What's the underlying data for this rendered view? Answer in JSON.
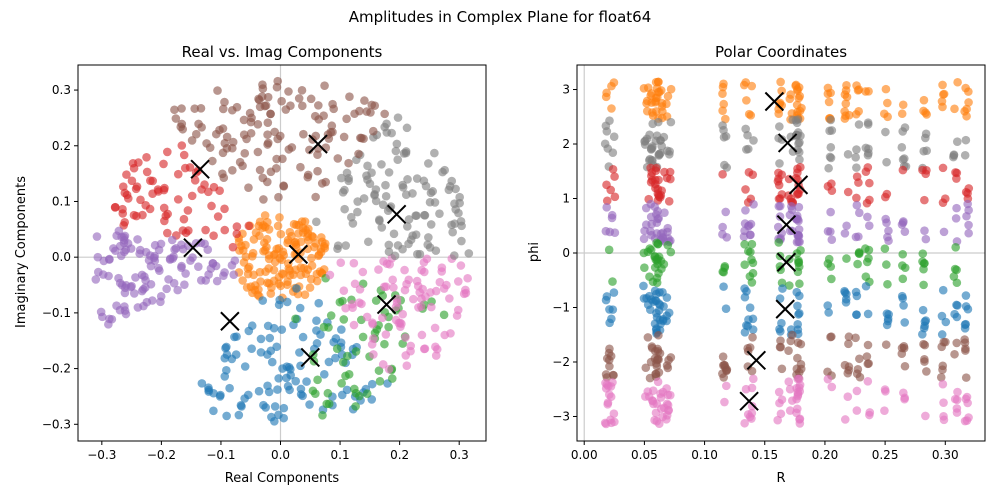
{
  "figure_title": "Amplitudes in Complex Plane for float64",
  "chart_data": [
    {
      "type": "scatter",
      "title": "Real vs. Imag Components",
      "xlabel": "Real Components",
      "ylabel": "Imaginary Components",
      "xlim": [
        -0.34,
        0.345
      ],
      "ylim": [
        -0.33,
        0.345
      ],
      "xticks": [
        -0.3,
        -0.2,
        -0.1,
        0.0,
        0.1,
        0.2,
        0.3
      ],
      "xtick_labels": [
        "−0.3",
        "−0.2",
        "−0.1",
        "0.0",
        "0.1",
        "0.2",
        "0.3"
      ],
      "yticks": [
        -0.3,
        -0.2,
        -0.1,
        0.0,
        0.1,
        0.2,
        0.3
      ],
      "ytick_labels": [
        "−0.3",
        "−0.2",
        "−0.1",
        "0.0",
        "0.1",
        "0.2",
        "0.3"
      ],
      "reference_lines": {
        "x": 0,
        "y": 0
      },
      "clusters": [
        {
          "color": "#ff7f0e",
          "phi_range": [
            -3.14,
            3.14
          ],
          "r_range": [
            0.0,
            0.08
          ],
          "count": 140
        },
        {
          "color": "#1f77b4",
          "phi_range": [
            -2.1,
            -0.9
          ],
          "r_range": [
            0.05,
            0.3
          ],
          "count": 110
        },
        {
          "color": "#2ca02c",
          "phi_range": [
            -1.35,
            -0.3
          ],
          "r_range": [
            0.05,
            0.3
          ],
          "count": 60
        },
        {
          "color": "#e377c2",
          "phi_range": [
            -0.85,
            0.0
          ],
          "r_range": [
            0.08,
            0.32
          ],
          "count": 90
        },
        {
          "color": "#7f7f7f",
          "phi_range": [
            0.0,
            0.95
          ],
          "r_range": [
            0.07,
            0.32
          ],
          "count": 110
        },
        {
          "color": "#8c564b",
          "phi_range": [
            0.95,
            2.2
          ],
          "r_range": [
            0.07,
            0.32
          ],
          "count": 130
        },
        {
          "color": "#d62728",
          "phi_range": [
            2.2,
            2.95
          ],
          "r_range": [
            0.05,
            0.3
          ],
          "count": 70
        },
        {
          "color": "#9467bd",
          "phi_range": [
            2.95,
            3.55
          ],
          "r_range": [
            0.05,
            0.32
          ],
          "count": 110
        }
      ],
      "centroids": [
        {
          "x": 0.03,
          "y": 0.005
        },
        {
          "x": -0.085,
          "y": -0.115
        },
        {
          "x": 0.05,
          "y": -0.18
        },
        {
          "x": 0.178,
          "y": -0.085
        },
        {
          "x": 0.195,
          "y": 0.077
        },
        {
          "x": 0.063,
          "y": 0.203
        },
        {
          "x": -0.135,
          "y": 0.158
        },
        {
          "x": -0.147,
          "y": 0.017
        }
      ]
    },
    {
      "type": "scatter",
      "title": "Polar Coordinates",
      "xlabel": "R",
      "ylabel": "phi",
      "xlim": [
        -0.006,
        0.333
      ],
      "ylim": [
        -3.45,
        3.45
      ],
      "xticks": [
        0.0,
        0.05,
        0.1,
        0.15,
        0.2,
        0.25,
        0.3
      ],
      "xtick_labels": [
        "0.00",
        "0.05",
        "0.10",
        "0.15",
        "0.20",
        "0.25",
        "0.30"
      ],
      "yticks": [
        -3,
        -2,
        -1,
        0,
        1,
        2,
        3
      ],
      "ytick_labels": [
        "−3",
        "−2",
        "−1",
        "0",
        "1",
        "2",
        "3"
      ],
      "reference_lines": {
        "x": 0,
        "y": 0
      },
      "bands": [
        {
          "color": "#ff7f0e",
          "phi_range": [
            2.45,
            3.14
          ],
          "count": 120
        },
        {
          "color": "#7f7f7f",
          "phi_range": [
            1.55,
            2.45
          ],
          "count": 110
        },
        {
          "color": "#d62728",
          "phi_range": [
            0.9,
            1.6
          ],
          "count": 90
        },
        {
          "color": "#9467bd",
          "phi_range": [
            0.2,
            0.9
          ],
          "count": 110
        },
        {
          "color": "#2ca02c",
          "phi_range": [
            -0.6,
            0.2
          ],
          "count": 90
        },
        {
          "color": "#1f77b4",
          "phi_range": [
            -1.5,
            -0.6
          ],
          "count": 110
        },
        {
          "color": "#8c564b",
          "phi_range": [
            -2.3,
            -1.5
          ],
          "count": 110
        },
        {
          "color": "#e377c2",
          "phi_range": [
            -3.14,
            -2.3
          ],
          "count": 110
        }
      ],
      "centroids": [
        {
          "r": 0.158,
          "phi": 2.78
        },
        {
          "r": 0.169,
          "phi": 2.02
        },
        {
          "r": 0.178,
          "phi": 1.25
        },
        {
          "r": 0.168,
          "phi": 0.52
        },
        {
          "r": 0.168,
          "phi": -0.17
        },
        {
          "r": 0.167,
          "phi": -1.03
        },
        {
          "r": 0.143,
          "phi": -1.97
        },
        {
          "r": 0.137,
          "phi": -2.72
        }
      ]
    }
  ]
}
